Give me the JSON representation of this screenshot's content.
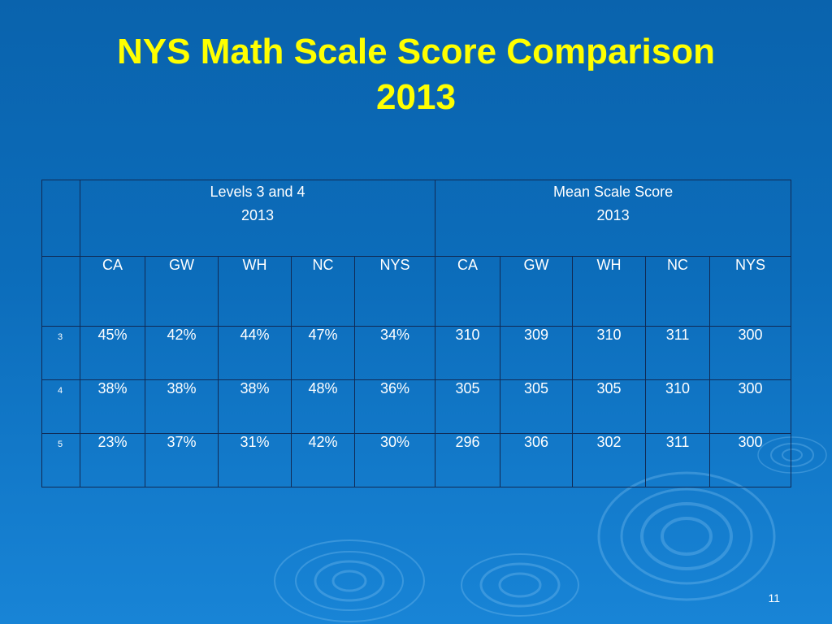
{
  "title": {
    "line1": "NYS Math Scale Score Comparison",
    "line2": "2013"
  },
  "table": {
    "groups": [
      {
        "label": "Levels 3 and 4",
        "year": "2013"
      },
      {
        "label": "Mean Scale Score",
        "year": "2013"
      }
    ],
    "columns": [
      "CA",
      "GW",
      "WH",
      "NC",
      "NYS",
      "CA",
      "GW",
      "WH",
      "NC",
      "NYS"
    ],
    "rows": [
      {
        "label": "3",
        "cells": [
          "45%",
          "42%",
          "44%",
          "47%",
          "34%",
          "310",
          "309",
          "310",
          "311",
          "300"
        ]
      },
      {
        "label": "4",
        "cells": [
          "38%",
          "38%",
          "38%",
          "48%",
          "36%",
          "305",
          "305",
          "305",
          "310",
          "300"
        ]
      },
      {
        "label": "5",
        "cells": [
          "23%",
          "37%",
          "31%",
          "42%",
          "30%",
          "296",
          "306",
          "302",
          "311",
          "300"
        ]
      }
    ]
  },
  "page_number": "11",
  "colors": {
    "title": "#ffff00",
    "text": "#ffffff",
    "background": "#0c6dbb",
    "border": "#102a55"
  }
}
